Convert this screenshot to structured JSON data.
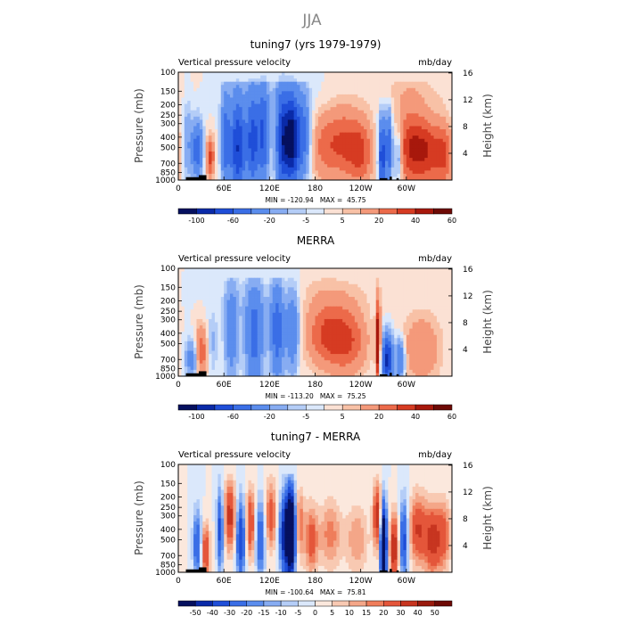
{
  "page_title": "JJA",
  "colors": {
    "palette_a": [
      "#05105f",
      "#0a2aa8",
      "#1f4ed8",
      "#3a6ee6",
      "#5b8ded",
      "#87acf2",
      "#b4cdf7",
      "#dbe8fb",
      "#fbe1d4",
      "#f8c1a6",
      "#f4997a",
      "#ec6a4a",
      "#d63b22",
      "#a7180c",
      "#6e0a05"
    ],
    "palette_b": [
      "#05105f",
      "#0a2aa8",
      "#1f4ed8",
      "#3a6ee6",
      "#5b8ded",
      "#87acf2",
      "#b4cdf7",
      "#dbe8fb",
      "#fbe8dd",
      "#f8c9b2",
      "#f4a688",
      "#ef7d5b",
      "#e4563a",
      "#c73520",
      "#9a1a0d",
      "#6e0a05"
    ]
  },
  "chart_data": [
    {
      "type": "heatmap",
      "title": "tuning7 (yrs 1979-1979)",
      "left_label": "Vertical pressure velocity",
      "right_label": "mb/day",
      "ylabel": "Pressure (mb)",
      "y2label": "Height (km)",
      "y_ticks": [
        "100",
        "150",
        "200",
        "250",
        "300",
        "400",
        "500",
        "700",
        "850",
        "1000"
      ],
      "y2_ticks": [
        "16",
        "12",
        "8",
        "4"
      ],
      "x_ticks": [
        "0",
        "60E",
        "120E",
        "180",
        "120W",
        "60W"
      ],
      "stats": "MIN = -120.94   MAX =  45.75",
      "colorbar_labels": [
        "-100",
        "-60",
        "-20",
        "-5",
        "5",
        "20",
        "40",
        "60"
      ],
      "palette": "palette_a"
    },
    {
      "type": "heatmap",
      "title": "MERRA",
      "left_label": "Vertical pressure velocity",
      "right_label": "mb/day",
      "ylabel": "Pressure (mb)",
      "y2label": "Height (km)",
      "y_ticks": [
        "100",
        "150",
        "200",
        "250",
        "300",
        "400",
        "500",
        "700",
        "850",
        "1000"
      ],
      "y2_ticks": [
        "16",
        "12",
        "8",
        "4"
      ],
      "x_ticks": [
        "0",
        "60E",
        "120E",
        "180",
        "120W",
        "60W"
      ],
      "stats": "MIN = -113.20   MAX =  75.25",
      "colorbar_labels": [
        "-100",
        "-60",
        "-20",
        "-5",
        "5",
        "20",
        "40",
        "60"
      ],
      "palette": "palette_a"
    },
    {
      "type": "heatmap",
      "title": "tuning7 - MERRA",
      "left_label": "Vertical pressure velocity",
      "right_label": "mb/day",
      "ylabel": "Pressure (mb)",
      "y2label": "Height (km)",
      "y_ticks": [
        "100",
        "150",
        "200",
        "250",
        "300",
        "400",
        "500",
        "700",
        "850",
        "1000"
      ],
      "y2_ticks": [
        "16",
        "12",
        "8",
        "4"
      ],
      "x_ticks": [
        "0",
        "60E",
        "120E",
        "180",
        "120W",
        "60W"
      ],
      "stats": "MIN = -100.64   MAX =  75.81",
      "colorbar_labels": [
        "-50",
        "-40",
        "-30",
        "-20",
        "-15",
        "-10",
        "-5",
        "0",
        "5",
        "10",
        "15",
        "20",
        "30",
        "40",
        "50"
      ],
      "palette": "palette_b"
    }
  ]
}
